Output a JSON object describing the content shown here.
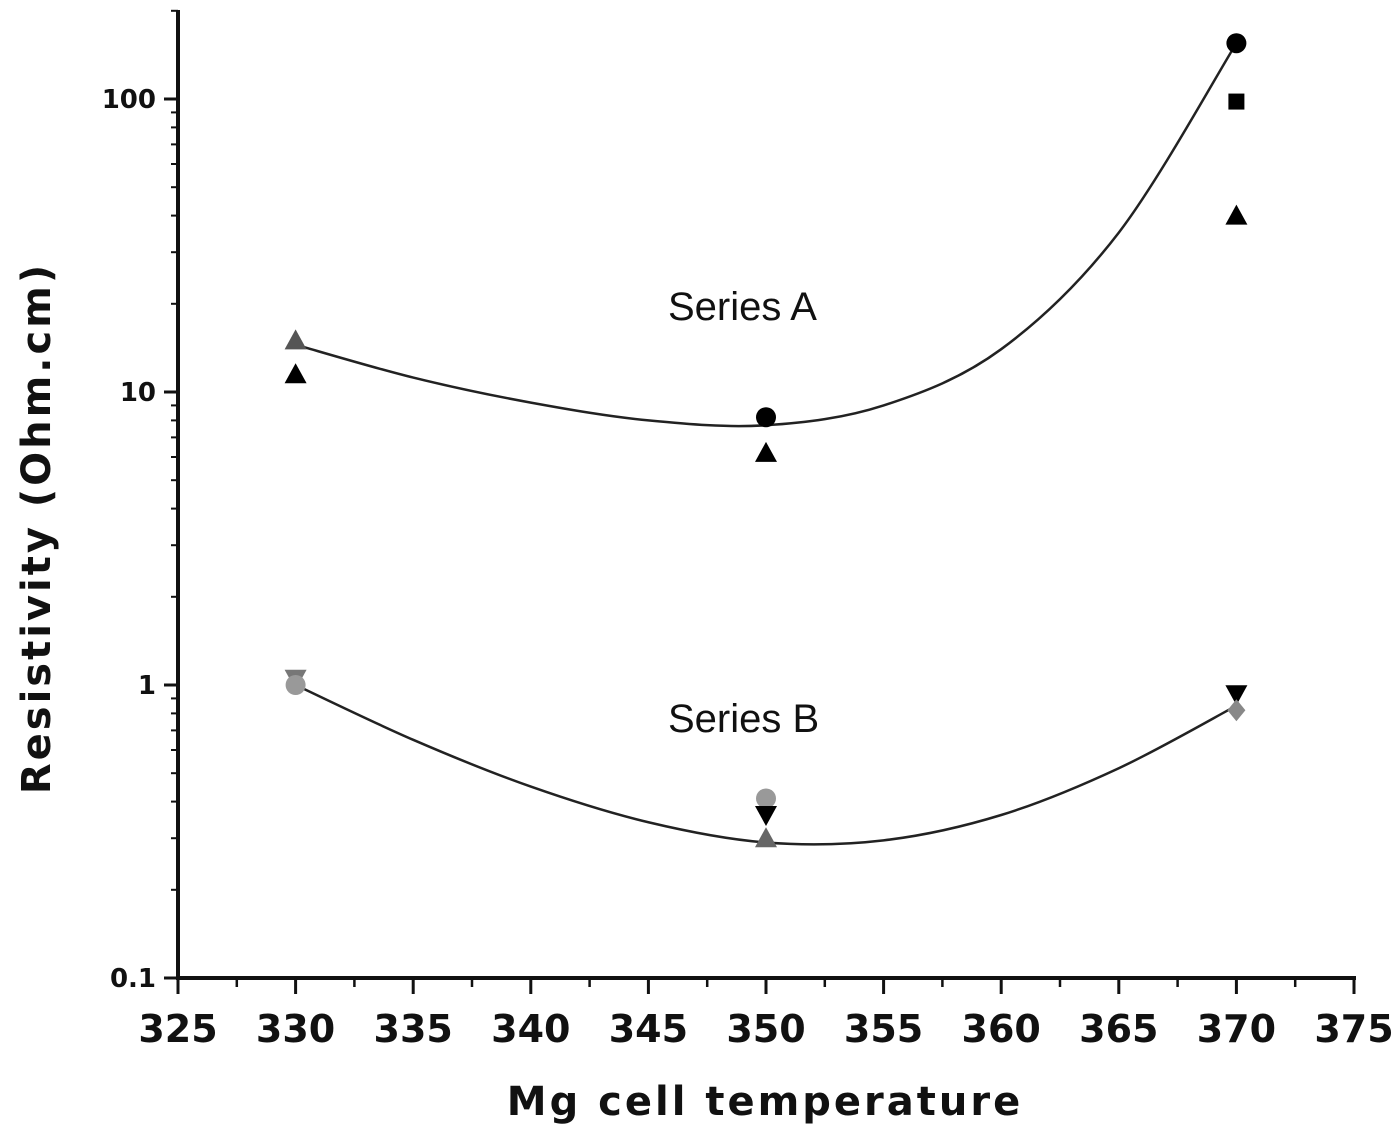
{
  "chart_data": {
    "type": "scatter",
    "xlabel": "Mg cell temperature",
    "ylabel": "Resistivity (Ohm.cm)",
    "xlim": [
      325,
      375
    ],
    "x_ticks": [
      325,
      330,
      335,
      340,
      345,
      350,
      355,
      360,
      365,
      370,
      375
    ],
    "ylim": [
      0.1,
      200
    ],
    "yscale": "log",
    "y_ticks": [
      0.1,
      1,
      10,
      100
    ],
    "y_tick_labels": [
      "0.1",
      "1",
      "10",
      "100"
    ],
    "grid": false,
    "legend": "none",
    "annotations": [
      "Series A",
      "Series B"
    ],
    "series": [
      {
        "group": "A",
        "points": [
          {
            "x": 330,
            "y": 15,
            "marker": "triangle-up",
            "color": "#555555"
          },
          {
            "x": 330,
            "y": 11.5,
            "marker": "triangle-up",
            "color": "#000000"
          },
          {
            "x": 350,
            "y": 8.2,
            "marker": "circle",
            "color": "#000000"
          },
          {
            "x": 350,
            "y": 6.2,
            "marker": "triangle-up",
            "color": "#000000"
          },
          {
            "x": 370,
            "y": 155,
            "marker": "circle",
            "color": "#000000"
          },
          {
            "x": 370,
            "y": 98,
            "marker": "square",
            "color": "#000000"
          },
          {
            "x": 370,
            "y": 40,
            "marker": "triangle-up",
            "color": "#000000"
          }
        ],
        "fit": [
          {
            "x": 330,
            "y": 14.5
          },
          {
            "x": 335,
            "y": 11.2
          },
          {
            "x": 340,
            "y": 9.2
          },
          {
            "x": 345,
            "y": 8.0
          },
          {
            "x": 350,
            "y": 7.7
          },
          {
            "x": 355,
            "y": 9.0
          },
          {
            "x": 360,
            "y": 14.0
          },
          {
            "x": 365,
            "y": 35.0
          },
          {
            "x": 370,
            "y": 155
          }
        ]
      },
      {
        "group": "B",
        "points": [
          {
            "x": 330,
            "y": 1.05,
            "marker": "triangle-down",
            "color": "#777777"
          },
          {
            "x": 330,
            "y": 1.0,
            "marker": "circle",
            "color": "#999999"
          },
          {
            "x": 350,
            "y": 0.41,
            "marker": "circle",
            "color": "#999999"
          },
          {
            "x": 350,
            "y": 0.36,
            "marker": "triangle-down",
            "color": "#000000"
          },
          {
            "x": 350,
            "y": 0.3,
            "marker": "triangle-up",
            "color": "#666666"
          },
          {
            "x": 370,
            "y": 0.93,
            "marker": "triangle-down",
            "color": "#000000"
          },
          {
            "x": 370,
            "y": 0.82,
            "marker": "diamond",
            "color": "#888888"
          }
        ],
        "fit": [
          {
            "x": 330,
            "y": 1.0
          },
          {
            "x": 335,
            "y": 0.65
          },
          {
            "x": 340,
            "y": 0.45
          },
          {
            "x": 345,
            "y": 0.34
          },
          {
            "x": 350,
            "y": 0.29
          },
          {
            "x": 355,
            "y": 0.295
          },
          {
            "x": 360,
            "y": 0.36
          },
          {
            "x": 365,
            "y": 0.52
          },
          {
            "x": 370,
            "y": 0.85
          }
        ]
      }
    ]
  }
}
